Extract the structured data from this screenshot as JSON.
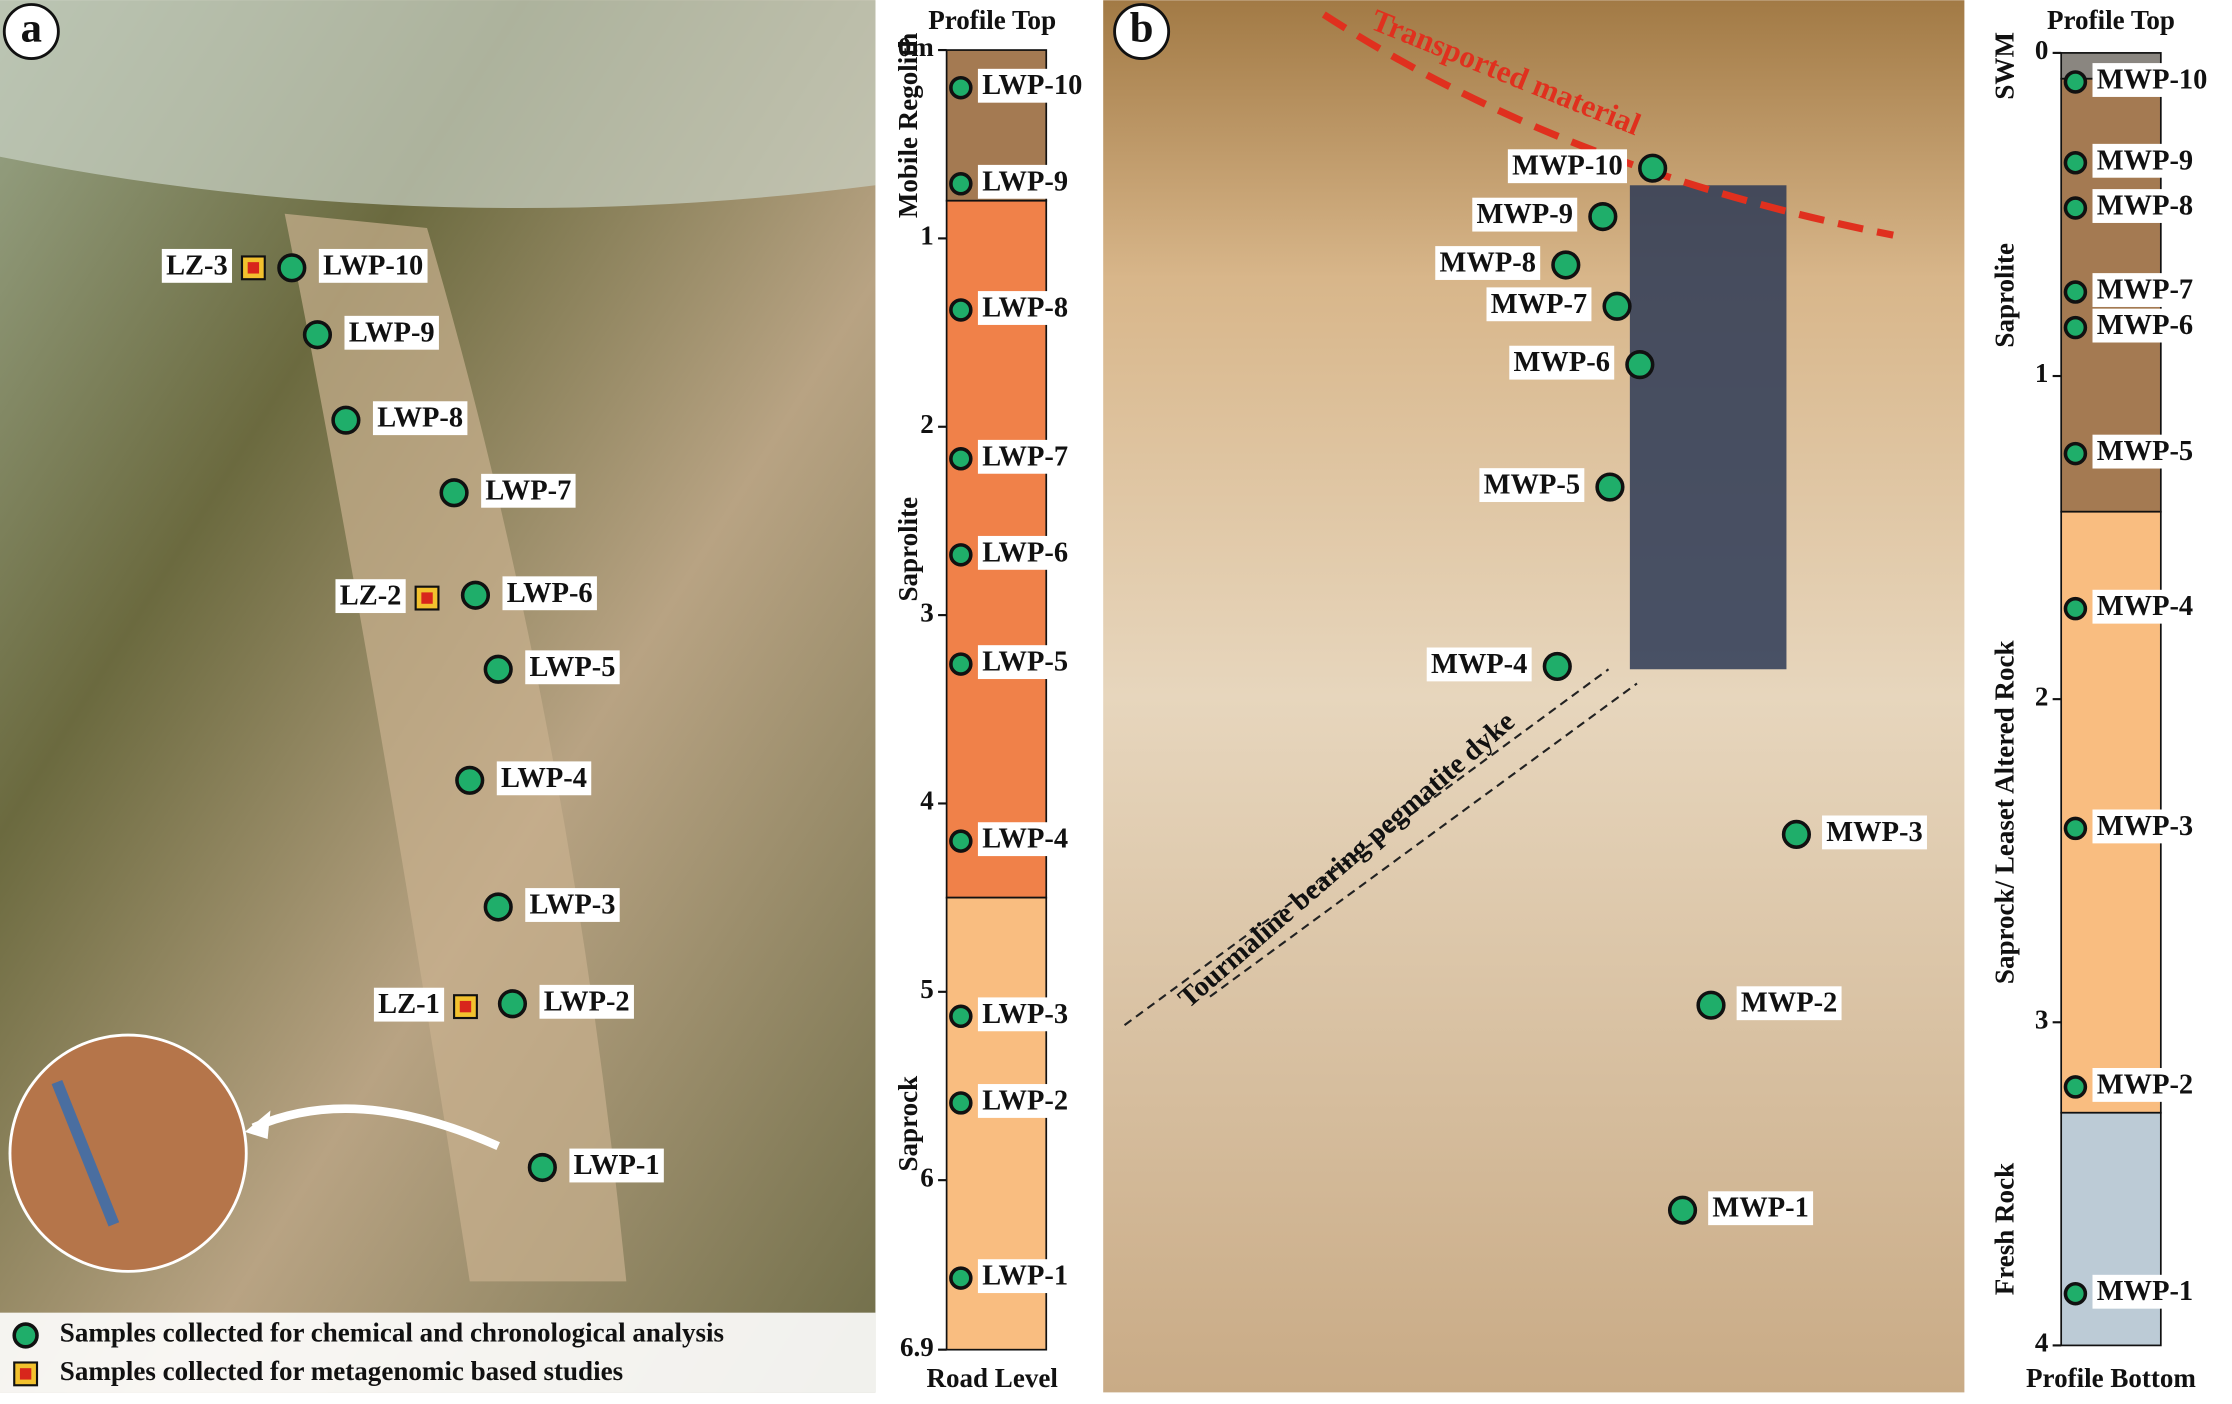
{
  "panels": [
    {
      "letter": "a",
      "column": {
        "top_label": "Profile Top",
        "bottom_label": "Road Level",
        "ticks": [
          {
            "value": 0,
            "label": "0m"
          },
          1,
          2,
          3,
          4,
          5,
          6,
          6.9
        ],
        "range": [
          0,
          6.9
        ],
        "layers": [
          {
            "name": "Mobile Regolith",
            "from": 0,
            "to": 0.8,
            "color": "#a47a52"
          },
          {
            "name": "Saprolite",
            "from": 0.8,
            "to": 4.5,
            "color": "#f08149"
          },
          {
            "name": "Saprock",
            "from": 4.5,
            "to": 6.9,
            "color": "#f9bd80"
          }
        ],
        "samples": [
          {
            "label": "LWP-10",
            "depth": 0.2
          },
          {
            "label": "LWP-9",
            "depth": 0.71
          },
          {
            "label": "LWP-8",
            "depth": 1.38
          },
          {
            "label": "LWP-7",
            "depth": 2.17
          },
          {
            "label": "LWP-6",
            "depth": 2.68
          },
          {
            "label": "LWP-5",
            "depth": 3.26
          },
          {
            "label": "LWP-4",
            "depth": 4.2
          },
          {
            "label": "LWP-3",
            "depth": 5.13
          },
          {
            "label": "LWP-2",
            "depth": 5.59
          },
          {
            "label": "LWP-1",
            "depth": 6.52
          }
        ]
      },
      "photo_labels": [
        "LZ-3",
        "LZ-2",
        "LZ-1"
      ],
      "legend": [
        "Samples collected for chemical and chronological analysis",
        "Samples collected for metagenomic based studies"
      ]
    },
    {
      "letter": "b",
      "column": {
        "top_label": "Profile Top",
        "bottom_label": "Profile Bottom",
        "ticks": [
          0,
          1,
          2,
          3,
          4
        ],
        "range": [
          0,
          4
        ],
        "layers": [
          {
            "name": "SWM",
            "from": 0,
            "to": 0.08,
            "color": "#8a8680"
          },
          {
            "name": "Saprolite",
            "from": 0.08,
            "to": 1.42,
            "color": "#a47a52"
          },
          {
            "name": "Saprock/ Leaset Altered Rock",
            "from": 1.42,
            "to": 3.28,
            "color": "#f9bd80"
          },
          {
            "name": "Fresh Rock",
            "from": 3.28,
            "to": 4,
            "color": "#bccbd6"
          }
        ],
        "samples": [
          {
            "label": "MWP-10",
            "depth": 0.09
          },
          {
            "label": "MWP-9",
            "depth": 0.34
          },
          {
            "label": "MWP-8",
            "depth": 0.48
          },
          {
            "label": "MWP-7",
            "depth": 0.74
          },
          {
            "label": "MWP-6",
            "depth": 0.85
          },
          {
            "label": "MWP-5",
            "depth": 1.24
          },
          {
            "label": "MWP-4",
            "depth": 1.72
          },
          {
            "label": "MWP-3",
            "depth": 2.4
          },
          {
            "label": "MWP-2",
            "depth": 3.2
          },
          {
            "label": "MWP-1",
            "depth": 3.84
          }
        ]
      },
      "annotations": [
        "Transported material",
        "Tourmaline bearing pegmatite dyke"
      ]
    }
  ]
}
